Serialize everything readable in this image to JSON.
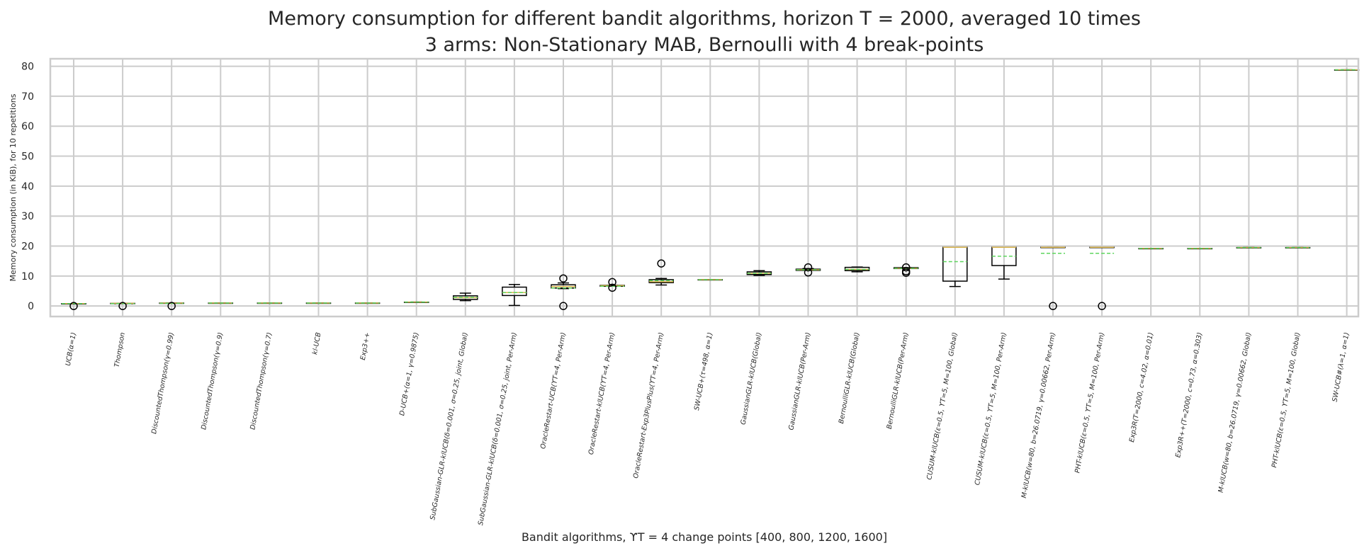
{
  "chart_data": {
    "type": "box",
    "title_line1": "Memory consumption for different bandit algorithms, horizon T = 2000, averaged 10 times",
    "title_line2": "3 arms: Non-Stationary MAB, Bernoulli with 4 break-points",
    "xlabel": "Bandit algorithms, ϒT = 4 change points [400, 800, 1200, 1600]",
    "ylabel": "Memory consumption (in KiB), for 10 repetitions",
    "ylim": [
      -3.5,
      82.5
    ],
    "yticks": [
      0,
      10,
      20,
      30,
      40,
      50,
      60,
      70,
      80
    ],
    "grid": true,
    "colors": {
      "median": "#d8b34b",
      "mean": "#5ed65e",
      "box": "#000000",
      "grid": "#cccccc"
    },
    "categories": [
      "UCB(α=1)",
      "Thompson",
      "DiscountedThompson(γ=0.99)",
      "DiscountedThompson(γ=0.9)",
      "DiscountedThompson(γ=0.7)",
      "kl-UCB",
      "Exp3++",
      "D-UCB+(α=1, γ=0.9875)",
      "SubGaussian-GLR-klUCB(δ=0.001, σ=0.25, joint, Global)",
      "SubGaussian-GLR-klUCB(δ=0.001, σ=0.25, joint, Per-Arm)",
      "OracleRestart-UCB(ϒT=4, Per-Arm)",
      "OracleRestart-klUCB(ϒT=4, Per-Arm)",
      "OracleRestart-Exp3PlusPlus(ϒT=4, Per-Arm)",
      "SW-UCB+(τ=498, α=1)",
      "GaussianGLR-klUCB(Global)",
      "GaussianGLR-klUCB(Per-Arm)",
      "BernoulliGLR-klUCB(Global)",
      "BernoulliGLR-klUCB(Per-Arm)",
      "CUSUM-klUCB(ε=0.5, ϒT=5, M=100, Global)",
      "CUSUM-klUCB(ε=0.5, ϒT=5, M=100, Per-Arm)",
      "M-klUCB(w=80, b=26.0719, γ=0.00662, Per-Arm)",
      "PHT-klUCB(ε=0.5, ϒT=5, M=100, Per-Arm)",
      "Exp3R(T=2000, c=4.02, α=0.01)",
      "Exp3R++(T=2000, c=0.73, α=0.303)",
      "M-klUCB(w=80, b=26.0719, γ=0.00662, Global)",
      "PHT-klUCB(ε=0.5, ϒT=5, M=100, Global)",
      "SW-UCB#(λ=1, α=1)"
    ],
    "boxes": [
      {
        "whislo": 0.8,
        "q1": 0.8,
        "median": 0.8,
        "q3": 0.8,
        "whishi": 0.8,
        "mean": 0.8,
        "fliers": [
          0
        ]
      },
      {
        "whislo": 0.9,
        "q1": 0.9,
        "median": 0.9,
        "q3": 0.9,
        "whishi": 0.9,
        "mean": 0.8,
        "fliers": [
          0
        ]
      },
      {
        "whislo": 1.0,
        "q1": 1.0,
        "median": 1.0,
        "q3": 1.0,
        "whishi": 1.0,
        "mean": 0.9,
        "fliers": [
          0
        ]
      },
      {
        "whislo": 1.0,
        "q1": 1.0,
        "median": 1.0,
        "q3": 1.0,
        "whishi": 1.0,
        "mean": 1.0,
        "fliers": []
      },
      {
        "whislo": 1.0,
        "q1": 1.0,
        "median": 1.0,
        "q3": 1.0,
        "whishi": 1.0,
        "mean": 1.0,
        "fliers": []
      },
      {
        "whislo": 1.0,
        "q1": 1.0,
        "median": 1.0,
        "q3": 1.0,
        "whishi": 1.0,
        "mean": 1.0,
        "fliers": []
      },
      {
        "whislo": 1.0,
        "q1": 1.0,
        "median": 1.0,
        "q3": 1.0,
        "whishi": 1.0,
        "mean": 1.0,
        "fliers": []
      },
      {
        "whislo": 1.3,
        "q1": 1.3,
        "median": 1.3,
        "q3": 1.3,
        "whishi": 1.3,
        "mean": 1.3,
        "fliers": []
      },
      {
        "whislo": 1.8,
        "q1": 2.2,
        "median": 2.8,
        "q3": 3.4,
        "whishi": 4.3,
        "mean": 2.9,
        "fliers": []
      },
      {
        "whislo": 0.2,
        "q1": 3.5,
        "median": 4.5,
        "q3": 6.3,
        "whishi": 7.2,
        "mean": 4.5,
        "fliers": []
      },
      {
        "whislo": 5.8,
        "q1": 6.0,
        "median": 6.5,
        "q3": 7.1,
        "whishi": 7.7,
        "mean": 6.0,
        "fliers": [
          9.2,
          0
        ]
      },
      {
        "whislo": 6.6,
        "q1": 6.6,
        "median": 6.8,
        "q3": 6.9,
        "whishi": 6.9,
        "mean": 6.6,
        "fliers": [
          8.0,
          6.1
        ]
      },
      {
        "whislo": 7.0,
        "q1": 7.8,
        "median": 8.1,
        "q3": 8.8,
        "whishi": 9.2,
        "mean": 8.5,
        "fliers": [
          14.2
        ]
      },
      {
        "whislo": 8.8,
        "q1": 8.8,
        "median": 8.8,
        "q3": 8.8,
        "whishi": 8.8,
        "mean": 8.8,
        "fliers": []
      },
      {
        "whislo": 10.2,
        "q1": 10.5,
        "median": 10.9,
        "q3": 11.4,
        "whishi": 11.8,
        "mean": 10.9,
        "fliers": []
      },
      {
        "whislo": 11.9,
        "q1": 11.9,
        "median": 12.1,
        "q3": 12.3,
        "whishi": 12.5,
        "mean": 12.1,
        "fliers": [
          12.9,
          11.2
        ]
      },
      {
        "whislo": 11.4,
        "q1": 11.8,
        "median": 12.2,
        "q3": 12.9,
        "whishi": 13.0,
        "mean": 12.2,
        "fliers": []
      },
      {
        "whislo": 12.5,
        "q1": 12.5,
        "median": 12.6,
        "q3": 12.8,
        "whishi": 12.8,
        "mean": 12.6,
        "fliers": [
          12.9,
          11.6,
          11.1
        ]
      },
      {
        "whislo": 6.5,
        "q1": 8.3,
        "median": 19.6,
        "q3": 19.6,
        "whishi": 19.6,
        "mean": 14.8,
        "fliers": []
      },
      {
        "whislo": 9.0,
        "q1": 13.5,
        "median": 19.6,
        "q3": 19.6,
        "whishi": 19.6,
        "mean": 16.6,
        "fliers": []
      },
      {
        "whislo": 19.6,
        "q1": 19.6,
        "median": 19.6,
        "q3": 19.6,
        "whishi": 19.6,
        "mean": 17.6,
        "fliers": [
          0
        ]
      },
      {
        "whislo": 19.6,
        "q1": 19.6,
        "median": 19.6,
        "q3": 19.6,
        "whishi": 19.6,
        "mean": 17.6,
        "fliers": [
          0
        ]
      },
      {
        "whislo": 19.2,
        "q1": 19.2,
        "median": 19.2,
        "q3": 19.2,
        "whishi": 19.2,
        "mean": 19.2,
        "fliers": []
      },
      {
        "whislo": 19.2,
        "q1": 19.2,
        "median": 19.2,
        "q3": 19.2,
        "whishi": 19.2,
        "mean": 19.2,
        "fliers": []
      },
      {
        "whislo": 19.5,
        "q1": 19.5,
        "median": 19.5,
        "q3": 19.5,
        "whishi": 19.5,
        "mean": 19.5,
        "fliers": []
      },
      {
        "whislo": 19.5,
        "q1": 19.5,
        "median": 19.5,
        "q3": 19.5,
        "whishi": 19.5,
        "mean": 19.5,
        "fliers": []
      },
      {
        "whislo": 78.8,
        "q1": 78.8,
        "median": 78.8,
        "q3": 78.8,
        "whishi": 78.8,
        "mean": 78.8,
        "fliers": []
      }
    ]
  }
}
